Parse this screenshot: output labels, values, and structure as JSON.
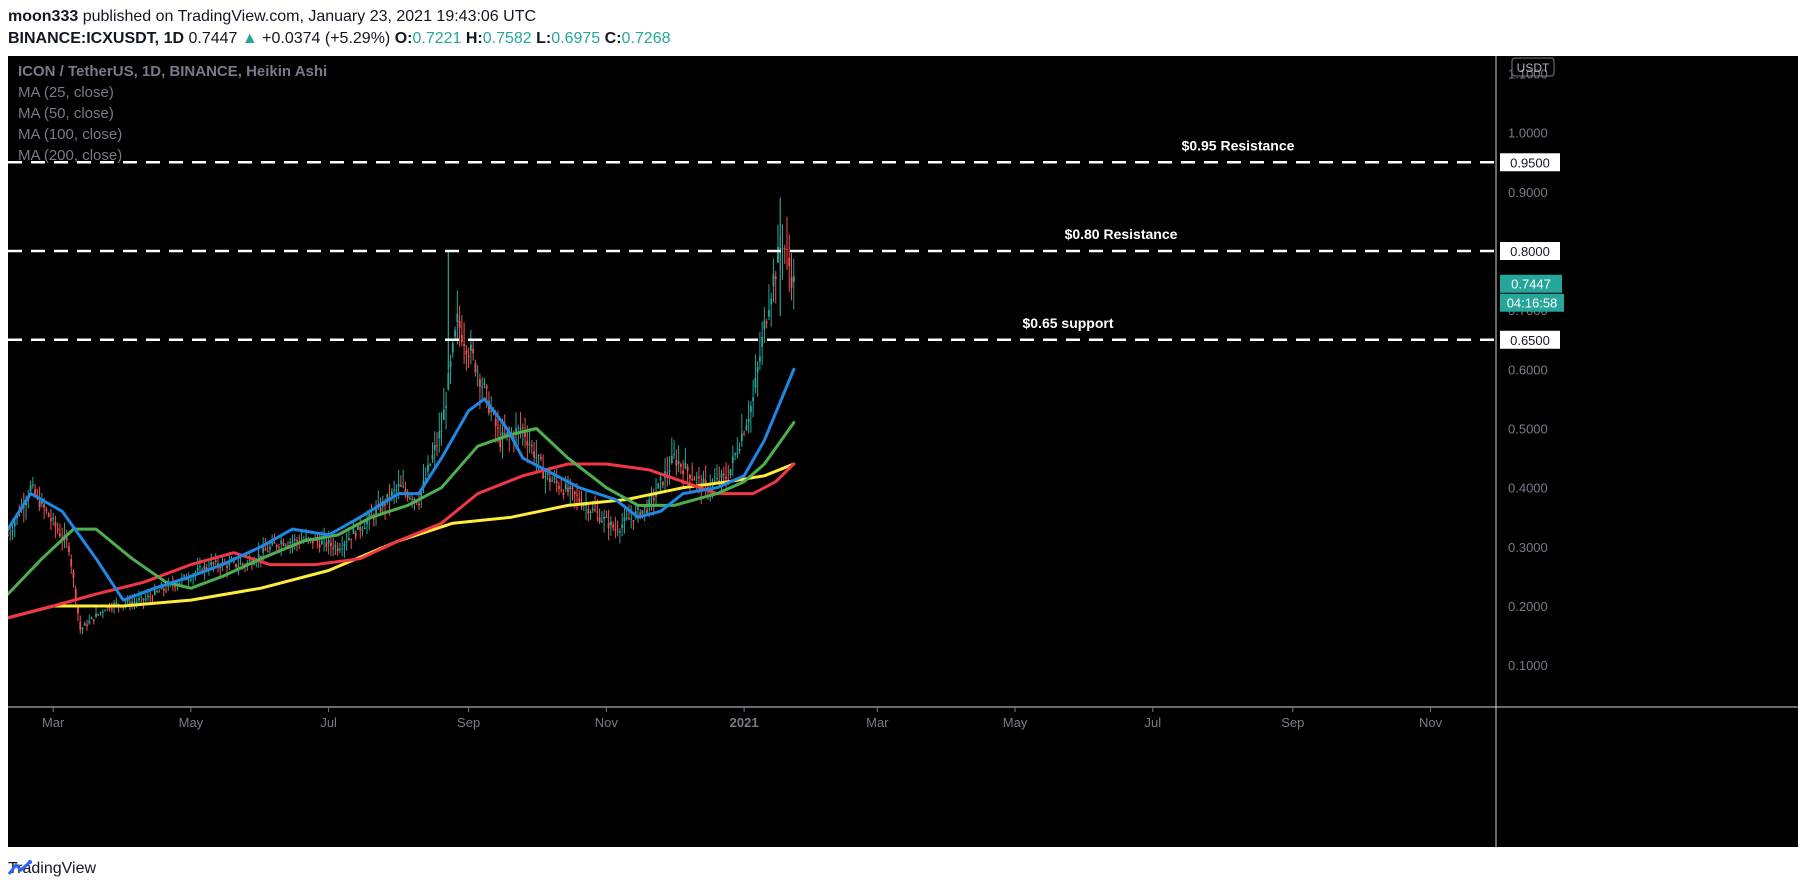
{
  "header": {
    "author": "moon333",
    "published": "published on TradingView.com, January 23, 2021 19:43:06 UTC",
    "symbol": "BINANCE:ICXUSDT, 1D",
    "last": "0.7447",
    "arrow": "▲",
    "change": "+0.0374 (+5.29%)",
    "o_label": "O:",
    "o": "0.7221",
    "h_label": "H:",
    "h": "0.7582",
    "l_label": "L:",
    "l": "0.6975",
    "c_label": "C:",
    "c": "0.7268"
  },
  "legend": [
    "ICON / TetherUS, 1D, BINANCE, Heikin Ashi",
    "MA (25, close)",
    "MA (50, close)",
    "MA (100, close)",
    "MA (200, close)"
  ],
  "footer": {
    "brand": "TradingView"
  },
  "colors": {
    "background": "#000000",
    "up": "#26a69a",
    "down": "#ef5350",
    "ma25": "#1e88e5",
    "ma50": "#4caf50",
    "ma100": "#f23645",
    "ma200": "#ffeb3b"
  },
  "chart_data": {
    "type": "candlestick",
    "title": "ICON / TetherUS, 1D, BINANCE, Heikin Ashi",
    "currency": "USDT",
    "ylim": [
      0,
      1.05
    ],
    "y_ticks": [
      "0.1000",
      "0.2000",
      "0.3000",
      "0.4000",
      "0.5000",
      "0.6000",
      "0.7000",
      "0.8000",
      "0.9000",
      "1.0000",
      "1.1000"
    ],
    "x_ticks": [
      "Mar",
      "May",
      "Jul",
      "Sep",
      "Nov",
      "2021",
      "Mar",
      "May",
      "Jul",
      "Sep",
      "Nov"
    ],
    "x_start": "2020-02-10",
    "x_end": "2021-11-30",
    "levels": [
      {
        "value": 0.95,
        "label": "$0.95 Resistance",
        "tag": "0.9500"
      },
      {
        "value": 0.8,
        "label": "$0.80 Resistance",
        "tag": "0.8000"
      },
      {
        "value": 0.65,
        "label": "$0.65 support",
        "tag": "0.6500"
      }
    ],
    "last_price": {
      "value": 0.7447,
      "label": "0.7447",
      "countdown": "04:16:58"
    },
    "candles_close_path": [
      [
        "2020-02-10",
        0.32
      ],
      [
        "2020-02-20",
        0.4
      ],
      [
        "2020-03-01",
        0.34
      ],
      [
        "2020-03-08",
        0.3
      ],
      [
        "2020-03-13",
        0.16
      ],
      [
        "2020-03-25",
        0.2
      ],
      [
        "2020-04-10",
        0.21
      ],
      [
        "2020-04-25",
        0.24
      ],
      [
        "2020-05-10",
        0.27
      ],
      [
        "2020-05-25",
        0.27
      ],
      [
        "2020-06-10",
        0.31
      ],
      [
        "2020-06-25",
        0.31
      ],
      [
        "2020-07-05",
        0.3
      ],
      [
        "2020-07-20",
        0.35
      ],
      [
        "2020-08-01",
        0.4
      ],
      [
        "2020-08-10",
        0.38
      ],
      [
        "2020-08-20",
        0.5
      ],
      [
        "2020-08-27",
        0.68
      ],
      [
        "2020-09-05",
        0.6
      ],
      [
        "2020-09-15",
        0.48
      ],
      [
        "2020-09-25",
        0.5
      ],
      [
        "2020-10-05",
        0.42
      ],
      [
        "2020-10-20",
        0.38
      ],
      [
        "2020-11-05",
        0.33
      ],
      [
        "2020-11-20",
        0.37
      ],
      [
        "2020-12-01",
        0.45
      ],
      [
        "2020-12-15",
        0.4
      ],
      [
        "2020-12-25",
        0.42
      ],
      [
        "2021-01-05",
        0.55
      ],
      [
        "2021-01-12",
        0.72
      ],
      [
        "2021-01-18",
        0.82
      ],
      [
        "2021-01-23",
        0.7447
      ]
    ],
    "highs_notable": [
      {
        "x": "2020-08-23",
        "value": 0.8
      },
      {
        "x": "2021-01-17",
        "value": 0.89
      }
    ],
    "series": [
      {
        "name": "MA (25, close)",
        "points": [
          [
            "2020-02-10",
            0.33
          ],
          [
            "2020-02-20",
            0.39
          ],
          [
            "2020-03-05",
            0.36
          ],
          [
            "2020-03-20",
            0.28
          ],
          [
            "2020-04-01",
            0.21
          ],
          [
            "2020-04-15",
            0.23
          ],
          [
            "2020-05-01",
            0.25
          ],
          [
            "2020-05-15",
            0.27
          ],
          [
            "2020-06-01",
            0.3
          ],
          [
            "2020-06-15",
            0.33
          ],
          [
            "2020-07-01",
            0.32
          ],
          [
            "2020-07-15",
            0.35
          ],
          [
            "2020-08-01",
            0.39
          ],
          [
            "2020-08-10",
            0.39
          ],
          [
            "2020-08-20",
            0.45
          ],
          [
            "2020-09-01",
            0.53
          ],
          [
            "2020-09-08",
            0.55
          ],
          [
            "2020-09-18",
            0.5
          ],
          [
            "2020-09-25",
            0.45
          ],
          [
            "2020-10-05",
            0.43
          ],
          [
            "2020-10-20",
            0.4
          ],
          [
            "2020-11-05",
            0.38
          ],
          [
            "2020-11-15",
            0.35
          ],
          [
            "2020-11-25",
            0.36
          ],
          [
            "2020-12-05",
            0.39
          ],
          [
            "2020-12-20",
            0.4
          ],
          [
            "2021-01-01",
            0.42
          ],
          [
            "2021-01-10",
            0.48
          ],
          [
            "2021-01-23",
            0.6
          ]
        ]
      },
      {
        "name": "MA (50, close)",
        "points": [
          [
            "2020-02-10",
            0.22
          ],
          [
            "2020-02-25",
            0.28
          ],
          [
            "2020-03-10",
            0.33
          ],
          [
            "2020-03-20",
            0.33
          ],
          [
            "2020-04-05",
            0.28
          ],
          [
            "2020-04-20",
            0.24
          ],
          [
            "2020-05-01",
            0.23
          ],
          [
            "2020-05-15",
            0.25
          ],
          [
            "2020-06-01",
            0.28
          ],
          [
            "2020-06-20",
            0.31
          ],
          [
            "2020-07-05",
            0.32
          ],
          [
            "2020-07-20",
            0.35
          ],
          [
            "2020-08-05",
            0.37
          ],
          [
            "2020-08-20",
            0.4
          ],
          [
            "2020-09-05",
            0.47
          ],
          [
            "2020-09-20",
            0.49
          ],
          [
            "2020-10-01",
            0.5
          ],
          [
            "2020-10-15",
            0.45
          ],
          [
            "2020-11-01",
            0.4
          ],
          [
            "2020-11-15",
            0.37
          ],
          [
            "2020-12-01",
            0.37
          ],
          [
            "2020-12-20",
            0.39
          ],
          [
            "2021-01-01",
            0.41
          ],
          [
            "2021-01-10",
            0.44
          ],
          [
            "2021-01-23",
            0.51
          ]
        ]
      },
      {
        "name": "MA (100, close)",
        "points": [
          [
            "2020-02-10",
            0.18
          ],
          [
            "2020-03-01",
            0.2
          ],
          [
            "2020-03-20",
            0.22
          ],
          [
            "2020-04-10",
            0.24
          ],
          [
            "2020-05-01",
            0.27
          ],
          [
            "2020-05-20",
            0.29
          ],
          [
            "2020-06-05",
            0.27
          ],
          [
            "2020-06-25",
            0.27
          ],
          [
            "2020-07-15",
            0.28
          ],
          [
            "2020-08-01",
            0.31
          ],
          [
            "2020-08-20",
            0.34
          ],
          [
            "2020-09-05",
            0.39
          ],
          [
            "2020-09-25",
            0.42
          ],
          [
            "2020-10-15",
            0.44
          ],
          [
            "2020-11-01",
            0.44
          ],
          [
            "2020-11-20",
            0.43
          ],
          [
            "2020-12-05",
            0.41
          ],
          [
            "2020-12-20",
            0.39
          ],
          [
            "2021-01-05",
            0.39
          ],
          [
            "2021-01-15",
            0.41
          ],
          [
            "2021-01-23",
            0.44
          ]
        ]
      },
      {
        "name": "MA (200, close)",
        "points": [
          [
            "2020-02-10",
            0.18
          ],
          [
            "2020-03-01",
            0.2
          ],
          [
            "2020-04-01",
            0.2
          ],
          [
            "2020-05-01",
            0.21
          ],
          [
            "2020-06-01",
            0.23
          ],
          [
            "2020-07-01",
            0.26
          ],
          [
            "2020-08-01",
            0.31
          ],
          [
            "2020-08-25",
            0.34
          ],
          [
            "2020-09-20",
            0.35
          ],
          [
            "2020-10-15",
            0.37
          ],
          [
            "2020-11-10",
            0.38
          ],
          [
            "2020-12-05",
            0.4
          ],
          [
            "2020-12-25",
            0.41
          ],
          [
            "2021-01-10",
            0.42
          ],
          [
            "2021-01-23",
            0.44
          ]
        ]
      }
    ]
  }
}
